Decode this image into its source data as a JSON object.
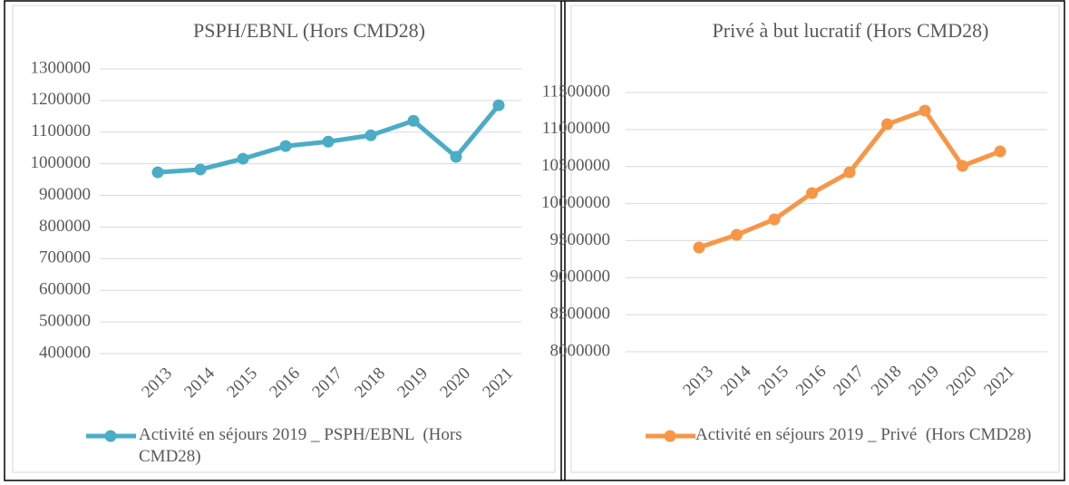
{
  "chart_data": [
    {
      "type": "line",
      "title": "PSPH/EBNL  (Hors CMD28)",
      "categories": [
        "2013",
        "2014",
        "2015",
        "2016",
        "2017",
        "2018",
        "2019",
        "2020",
        "2021"
      ],
      "series": [
        {
          "name": "Activité en séjours 2019 _ PSPH/EBNL  (Hors CMD28)",
          "color": "#4bacc6",
          "values": [
            973000,
            982000,
            1016000,
            1056000,
            1070000,
            1090000,
            1136000,
            1022000,
            1185000
          ]
        }
      ],
      "ylim": [
        400000,
        1300000
      ],
      "yticks": [
        400000,
        500000,
        600000,
        700000,
        800000,
        900000,
        1000000,
        1100000,
        1200000,
        1300000
      ],
      "grid": true
    },
    {
      "type": "line",
      "title": "Privé à but lucratif (Hors CMD28)",
      "categories": [
        "2013",
        "2014",
        "2015",
        "2016",
        "2017",
        "2018",
        "2019",
        "2020",
        "2021"
      ],
      "series": [
        {
          "name": "Activité en séjours 2019 _ Privé  (Hors CMD28)",
          "color": "#f79646",
          "values": [
            9407000,
            9579000,
            9787000,
            10141000,
            10423000,
            11071000,
            11255000,
            10509000,
            10704000
          ]
        }
      ],
      "ylim": [
        8000000,
        11500000
      ],
      "yticks": [
        8000000,
        8500000,
        9000000,
        9500000,
        10000000,
        10500000,
        11000000,
        11500000
      ],
      "grid": true
    }
  ]
}
